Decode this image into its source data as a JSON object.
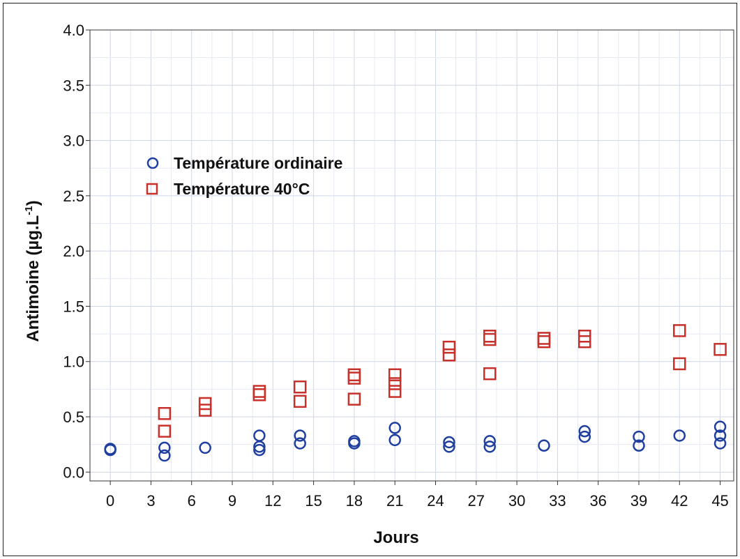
{
  "chart_data": {
    "type": "scatter",
    "xlabel": "Jours",
    "ylabel": "Antimoine (µg.L",
    "ylabel_sup": "-1",
    "ylabel_close": ")",
    "xlim": [
      -1.5,
      46
    ],
    "ylim": [
      -0.08,
      4.0
    ],
    "x_ticks": [
      "0",
      "3",
      "6",
      "9",
      "12",
      "15",
      "18",
      "21",
      "24",
      "27",
      "30",
      "33",
      "36",
      "39",
      "42",
      "45"
    ],
    "y_ticks": [
      "0.0",
      "0.5",
      "1.0",
      "1.5",
      "2.0",
      "2.5",
      "3.0",
      "3.5",
      "4.0"
    ],
    "grid": true,
    "legend_position": "upper-left",
    "series": [
      {
        "name": "Température ordinaire",
        "marker": "circle",
        "color": "#1f3fa0",
        "points": [
          [
            0,
            0.2
          ],
          [
            0,
            0.21
          ],
          [
            4,
            0.15
          ],
          [
            4,
            0.22
          ],
          [
            7,
            0.22
          ],
          [
            11,
            0.2
          ],
          [
            11,
            0.23
          ],
          [
            11,
            0.33
          ],
          [
            14,
            0.26
          ],
          [
            14,
            0.33
          ],
          [
            18,
            0.26
          ],
          [
            18,
            0.28
          ],
          [
            21,
            0.29
          ],
          [
            21,
            0.4
          ],
          [
            25,
            0.23
          ],
          [
            25,
            0.27
          ],
          [
            28,
            0.23
          ],
          [
            28,
            0.28
          ],
          [
            32,
            0.24
          ],
          [
            35,
            0.32
          ],
          [
            35,
            0.37
          ],
          [
            39,
            0.24
          ],
          [
            39,
            0.32
          ],
          [
            42,
            0.33
          ],
          [
            45,
            0.26
          ],
          [
            45,
            0.33
          ],
          [
            45,
            0.41
          ]
        ]
      },
      {
        "name": "Température 40°C",
        "marker": "square",
        "color": "#c8302a",
        "points": [
          [
            4,
            0.37
          ],
          [
            4,
            0.53
          ],
          [
            7,
            0.56
          ],
          [
            7,
            0.62
          ],
          [
            11,
            0.7
          ],
          [
            11,
            0.73
          ],
          [
            14,
            0.64
          ],
          [
            14,
            0.77
          ],
          [
            18,
            0.66
          ],
          [
            18,
            0.85
          ],
          [
            18,
            0.88
          ],
          [
            21,
            0.73
          ],
          [
            21,
            0.8
          ],
          [
            21,
            0.88
          ],
          [
            25,
            1.06
          ],
          [
            25,
            1.13
          ],
          [
            28,
            0.89
          ],
          [
            28,
            1.2
          ],
          [
            28,
            1.23
          ],
          [
            32,
            1.18
          ],
          [
            32,
            1.21
          ],
          [
            35,
            1.18
          ],
          [
            35,
            1.23
          ],
          [
            42,
            0.98
          ],
          [
            42,
            1.28
          ],
          [
            45,
            1.11
          ]
        ]
      }
    ]
  }
}
